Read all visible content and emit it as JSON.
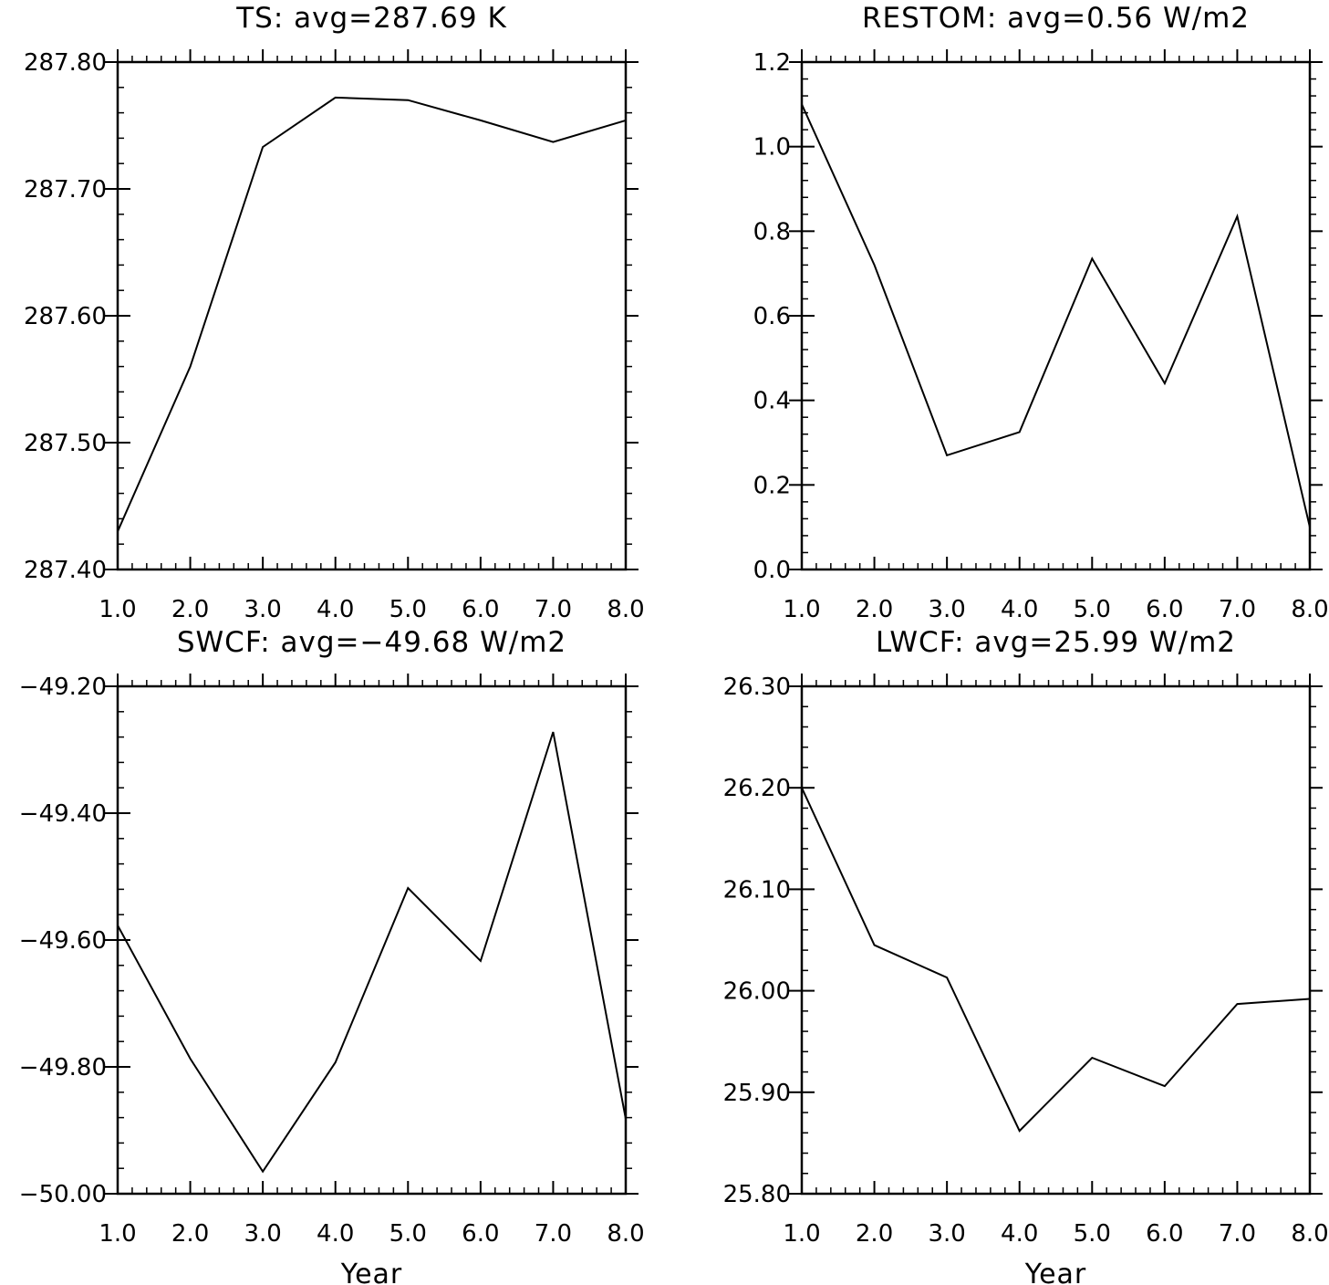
{
  "chart_data": [
    {
      "type": "line",
      "title": "TS: avg=287.69 K",
      "xlabel": "",
      "ylabel": "",
      "x": [
        1,
        2,
        3,
        4,
        5,
        6,
        7,
        8
      ],
      "series": [
        {
          "values": [
            287.43,
            287.56,
            287.733,
            287.772,
            287.77,
            287.754,
            287.737,
            287.754
          ]
        }
      ],
      "xlim": [
        1,
        8
      ],
      "ylim": [
        287.4,
        287.8
      ],
      "xticks": [
        "1.0",
        "2.0",
        "3.0",
        "4.0",
        "5.0",
        "6.0",
        "7.0",
        "8.0"
      ],
      "yticks": [
        "287.40",
        "287.50",
        "287.60",
        "287.70",
        "287.80"
      ],
      "grid": false
    },
    {
      "type": "line",
      "title": "RESTOM: avg=0.56 W/m2",
      "xlabel": "",
      "ylabel": "",
      "x": [
        1,
        2,
        3,
        4,
        5,
        6,
        7,
        8
      ],
      "series": [
        {
          "values": [
            1.1,
            0.72,
            0.27,
            0.325,
            0.735,
            0.44,
            0.835,
            0.1
          ]
        }
      ],
      "xlim": [
        1,
        8
      ],
      "ylim": [
        0.0,
        1.2
      ],
      "xticks": [
        "1.0",
        "2.0",
        "3.0",
        "4.0",
        "5.0",
        "6.0",
        "7.0",
        "8.0"
      ],
      "yticks": [
        "0.0",
        "0.2",
        "0.4",
        "0.6",
        "0.8",
        "1.0",
        "1.2"
      ],
      "grid": false
    },
    {
      "type": "line",
      "title": "SWCF: avg=−49.68 W/m2",
      "xlabel": "Year",
      "ylabel": "",
      "x": [
        1,
        2,
        3,
        4,
        5,
        6,
        7,
        8
      ],
      "series": [
        {
          "values": [
            -49.577,
            -49.787,
            -49.965,
            -49.793,
            -49.518,
            -49.633,
            -49.272,
            -49.882
          ]
        }
      ],
      "xlim": [
        1,
        8
      ],
      "ylim": [
        -50.0,
        -49.2
      ],
      "xticks": [
        "1.0",
        "2.0",
        "3.0",
        "4.0",
        "5.0",
        "6.0",
        "7.0",
        "8.0"
      ],
      "yticks": [
        "−50.00",
        "−49.80",
        "−49.60",
        "−49.40",
        "−49.20"
      ],
      "grid": false
    },
    {
      "type": "line",
      "title": "LWCF: avg=25.99 W/m2",
      "xlabel": "Year",
      "ylabel": "",
      "x": [
        1,
        2,
        3,
        4,
        5,
        6,
        7,
        8
      ],
      "series": [
        {
          "values": [
            26.2,
            26.045,
            26.013,
            25.862,
            25.934,
            25.906,
            25.987,
            25.992
          ]
        }
      ],
      "xlim": [
        1,
        8
      ],
      "ylim": [
        25.8,
        26.3
      ],
      "xticks": [
        "1.0",
        "2.0",
        "3.0",
        "4.0",
        "5.0",
        "6.0",
        "7.0",
        "8.0"
      ],
      "yticks": [
        "25.80",
        "25.90",
        "26.00",
        "26.10",
        "26.20",
        "26.30"
      ],
      "grid": false
    }
  ]
}
